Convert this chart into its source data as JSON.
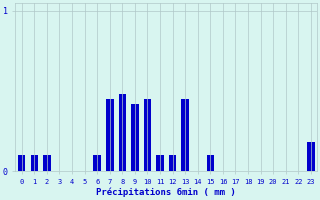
{
  "values": [
    0.1,
    0.1,
    0.1,
    0,
    0,
    0,
    0.1,
    0.45,
    0.48,
    0.42,
    0.45,
    0.1,
    0.1,
    0.45,
    0,
    0.1,
    0,
    0,
    0,
    0,
    0,
    0,
    0,
    0.18
  ],
  "bar_color": "#0000cc",
  "bg_color": "#d8f5f0",
  "grid_color": "#b0c8c8",
  "xlabel": "Précipitations 6min ( mm )",
  "xlabel_color": "#0000cc",
  "tick_color": "#0000cc",
  "ytick_labels": [
    "0",
    "1"
  ],
  "ytick_values": [
    0,
    1
  ],
  "xtick_labels": [
    "0",
    "1",
    "2",
    "3",
    "4",
    "5",
    "6",
    "7",
    "8",
    "9",
    "10",
    "11",
    "12",
    "13",
    "14",
    "15",
    "16",
    "17",
    "18",
    "19",
    "20",
    "21",
    "22",
    "23"
  ],
  "ylim": [
    0,
    1.05
  ],
  "xlim": [
    -0.5,
    23.5
  ],
  "figsize": [
    3.2,
    2.0
  ],
  "dpi": 100
}
